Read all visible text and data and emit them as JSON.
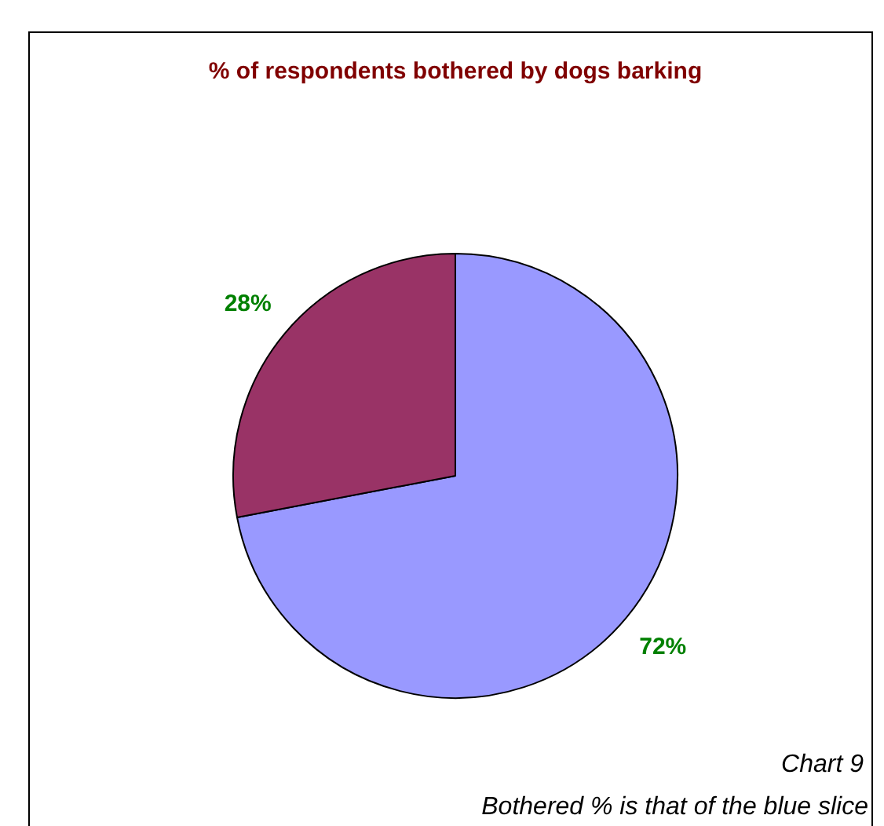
{
  "chart_data": {
    "type": "pie",
    "title": "% of respondents bothered by dogs barking",
    "categories": [
      null,
      null
    ],
    "values": [
      72,
      28
    ],
    "colors": [
      "#9999ff",
      "#993366"
    ],
    "value_labels": [
      "72%",
      "28%"
    ],
    "annotations": [
      "Chart 9",
      "Bothered % is that of the blue slice"
    ],
    "legend": false
  }
}
